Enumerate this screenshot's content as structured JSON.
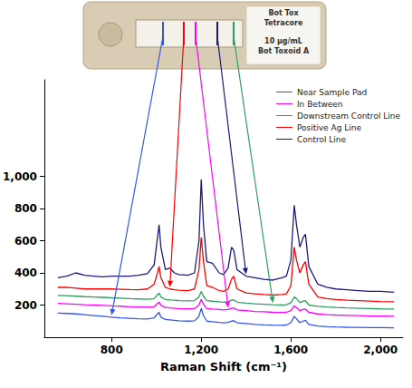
{
  "chart_data": {
    "type": "line",
    "x_label": "Raman Shift (cm⁻¹)",
    "annotations": [
      "Bot Tox",
      "Tetracore",
      "10 µg/mL",
      "Bot Toxoid A"
    ],
    "x": [
      560,
      600,
      640,
      680,
      720,
      760,
      800,
      840,
      880,
      920,
      960,
      990,
      1005,
      1012,
      1020,
      1040,
      1060,
      1080,
      1100,
      1140,
      1170,
      1190,
      1200,
      1210,
      1225,
      1250,
      1280,
      1300,
      1320,
      1335,
      1345,
      1360,
      1400,
      1440,
      1480,
      1520,
      1560,
      1580,
      1600,
      1615,
      1625,
      1640,
      1655,
      1665,
      1680,
      1720,
      1760,
      1800,
      1850,
      1900,
      1950,
      2000,
      2060
    ],
    "series": [
      {
        "name": "Near Sample Pad",
        "color": "#3355ee",
        "values": [
          150,
          148,
          145,
          140,
          135,
          130,
          125,
          120,
          118,
          115,
          113,
          120,
          145,
          155,
          125,
          110,
          108,
          105,
          102,
          100,
          102,
          130,
          180,
          135,
          100,
          96,
          92,
          90,
          92,
          100,
          102,
          90,
          85,
          80,
          77,
          75,
          74,
          76,
          90,
          130,
          115,
          90,
          100,
          105,
          80,
          70,
          66,
          64,
          62,
          61,
          60,
          60,
          58
        ]
      },
      {
        "name": "In Between",
        "color": "#ff00ff",
        "values": [
          210,
          208,
          205,
          202,
          200,
          198,
          195,
          193,
          190,
          188,
          186,
          190,
          210,
          220,
          198,
          185,
          182,
          180,
          178,
          176,
          178,
          200,
          235,
          205,
          178,
          175,
          172,
          170,
          172,
          180,
          182,
          170,
          165,
          160,
          158,
          155,
          154,
          155,
          165,
          195,
          185,
          165,
          172,
          175,
          155,
          145,
          140,
          138,
          136,
          134,
          132,
          131,
          130
        ]
      },
      {
        "name": "Downstream Control Line",
        "color": "#2e9e5e",
        "values": [
          260,
          258,
          255,
          252,
          250,
          248,
          245,
          243,
          240,
          238,
          236,
          240,
          265,
          275,
          250,
          235,
          232,
          230,
          228,
          226,
          228,
          250,
          285,
          255,
          228,
          224,
          220,
          218,
          220,
          230,
          232,
          218,
          212,
          208,
          205,
          202,
          200,
          202,
          215,
          250,
          240,
          215,
          225,
          228,
          200,
          192,
          188,
          185,
          182,
          180,
          178,
          176,
          175
        ]
      },
      {
        "name": "Positive Ag Line",
        "color": "#ff0000",
        "values": [
          310,
          310,
          305,
          300,
          300,
          300,
          300,
          298,
          296,
          295,
          300,
          330,
          400,
          440,
          370,
          310,
          300,
          295,
          292,
          290,
          300,
          420,
          620,
          470,
          320,
          310,
          290,
          285,
          300,
          360,
          380,
          300,
          275,
          270,
          265,
          262,
          265,
          270,
          320,
          560,
          480,
          400,
          450,
          470,
          330,
          250,
          240,
          235,
          230,
          228,
          225,
          222,
          220
        ]
      },
      {
        "name": "Control Line",
        "color": "#1a1a80",
        "values": [
          370,
          380,
          400,
          385,
          380,
          375,
          380,
          380,
          380,
          385,
          395,
          450,
          620,
          700,
          560,
          420,
          430,
          400,
          390,
          385,
          400,
          600,
          980,
          700,
          470,
          460,
          400,
          390,
          430,
          560,
          540,
          420,
          380,
          370,
          360,
          355,
          370,
          380,
          480,
          820,
          700,
          560,
          620,
          640,
          440,
          330,
          310,
          300,
          295,
          290,
          285,
          285,
          280
        ]
      }
    ],
    "xlim": [
      500,
      2100
    ],
    "xticks": [
      800,
      1200,
      1600,
      2000
    ],
    "ylim": [
      0,
      1600
    ],
    "yticks": [
      200,
      400,
      600,
      800,
      1000
    ],
    "grid": false,
    "legend": "top-right"
  }
}
